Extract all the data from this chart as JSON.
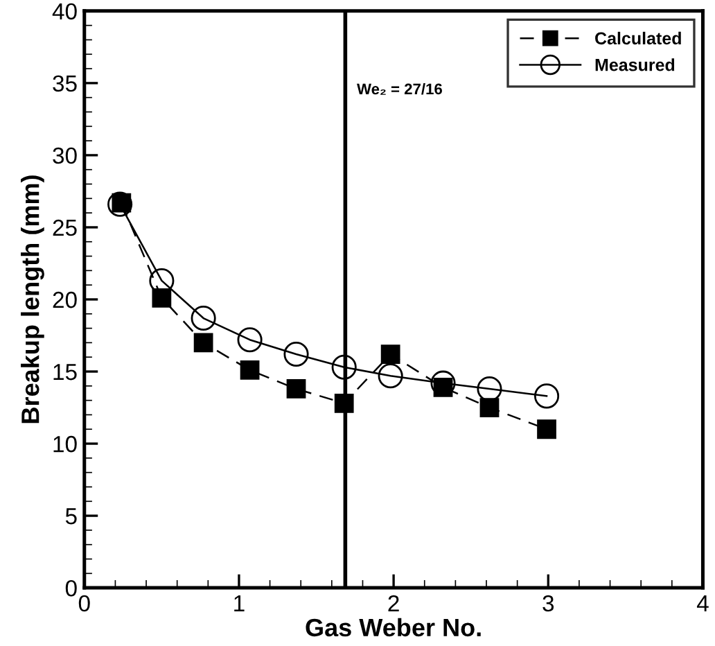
{
  "chart_data": {
    "type": "line",
    "xlabel": "Gas Weber No.",
    "ylabel": "Breakup length (mm)",
    "xlim": [
      0,
      4
    ],
    "xticks": [
      0,
      1,
      2,
      3,
      4
    ],
    "ylim": [
      0,
      40
    ],
    "yticks": [
      0,
      5,
      10,
      15,
      20,
      25,
      30,
      35,
      40
    ],
    "grid": false,
    "legend": "top right",
    "series": [
      {
        "name": "Calculated",
        "color": "#000000",
        "marker": "square",
        "line_style": "dashed",
        "x": [
          0.24,
          0.5,
          0.77,
          1.07,
          1.37,
          1.68,
          1.98,
          2.32,
          2.62,
          2.99
        ],
        "values": [
          26.7,
          20.1,
          17.0,
          15.1,
          13.8,
          12.8,
          16.2,
          13.9,
          12.5,
          11.0
        ]
      },
      {
        "name": "Measured",
        "color": "#000000",
        "marker": "circle",
        "line_style": "solid",
        "x": [
          0.23,
          0.5,
          0.77,
          1.07,
          1.37,
          1.68,
          1.98,
          2.32,
          2.62,
          2.99
        ],
        "values": [
          26.6,
          21.3,
          18.7,
          17.2,
          16.2,
          15.3,
          14.7,
          14.2,
          13.8,
          13.3
        ]
      }
    ],
    "ref_lines": [
      {
        "axis": "x",
        "value": 1.6875,
        "color": "#000000",
        "line_style": "solid"
      }
    ],
    "annotations": [
      {
        "text": "We₂ = 27/16",
        "x": 1.6875,
        "y": 34.5
      }
    ]
  }
}
